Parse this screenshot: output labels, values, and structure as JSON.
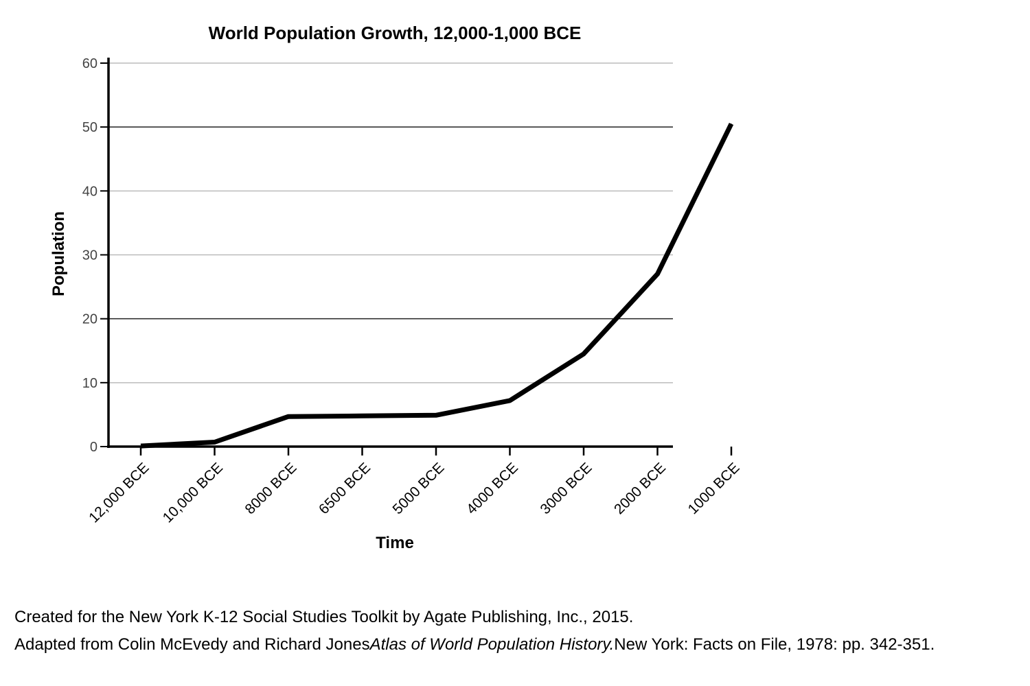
{
  "chart_data": {
    "type": "line",
    "title": "World Population Growth, 12,000-1,000 BCE",
    "xlabel": "Time",
    "ylabel": "Population",
    "ylim": [
      0,
      60
    ],
    "yticks": [
      0,
      10,
      20,
      30,
      40,
      50,
      60
    ],
    "grid": true,
    "categories": [
      "12,000 BCE",
      "10,000 BCE",
      "8000 BCE",
      "6500 BCE",
      "5000 BCE",
      "4000 BCE",
      "3000 BCE",
      "2000 BCE",
      "1000 BCE"
    ],
    "series": [
      {
        "x": [
          "12,000 BCE",
          "10,000 BCE",
          "8000 BCE",
          "6500 BCE",
          "5000 BCE",
          "4000 BCE",
          "3000 BCE",
          "2000 BCE",
          "1000 BCE"
        ],
        "values": [
          0.1,
          0.7,
          4.7,
          4.8,
          4.9,
          7.2,
          14.5,
          27,
          50.5
        ]
      }
    ]
  },
  "credits": {
    "line1": "Created for the New York K-12 Social Studies Toolkit by Agate Publishing, Inc., 2015.",
    "line2_prefix": "Adapted from Colin McEvedy and Richard Jones",
    "line2_italic": "Atlas of World Population History.",
    "line2_suffix": "New York: Facts on File, 1978: pp. 342-351."
  },
  "colors": {
    "line": "#000000",
    "grid": "#bbbbbb",
    "grid_major": "#222222",
    "axis": "#000000"
  }
}
